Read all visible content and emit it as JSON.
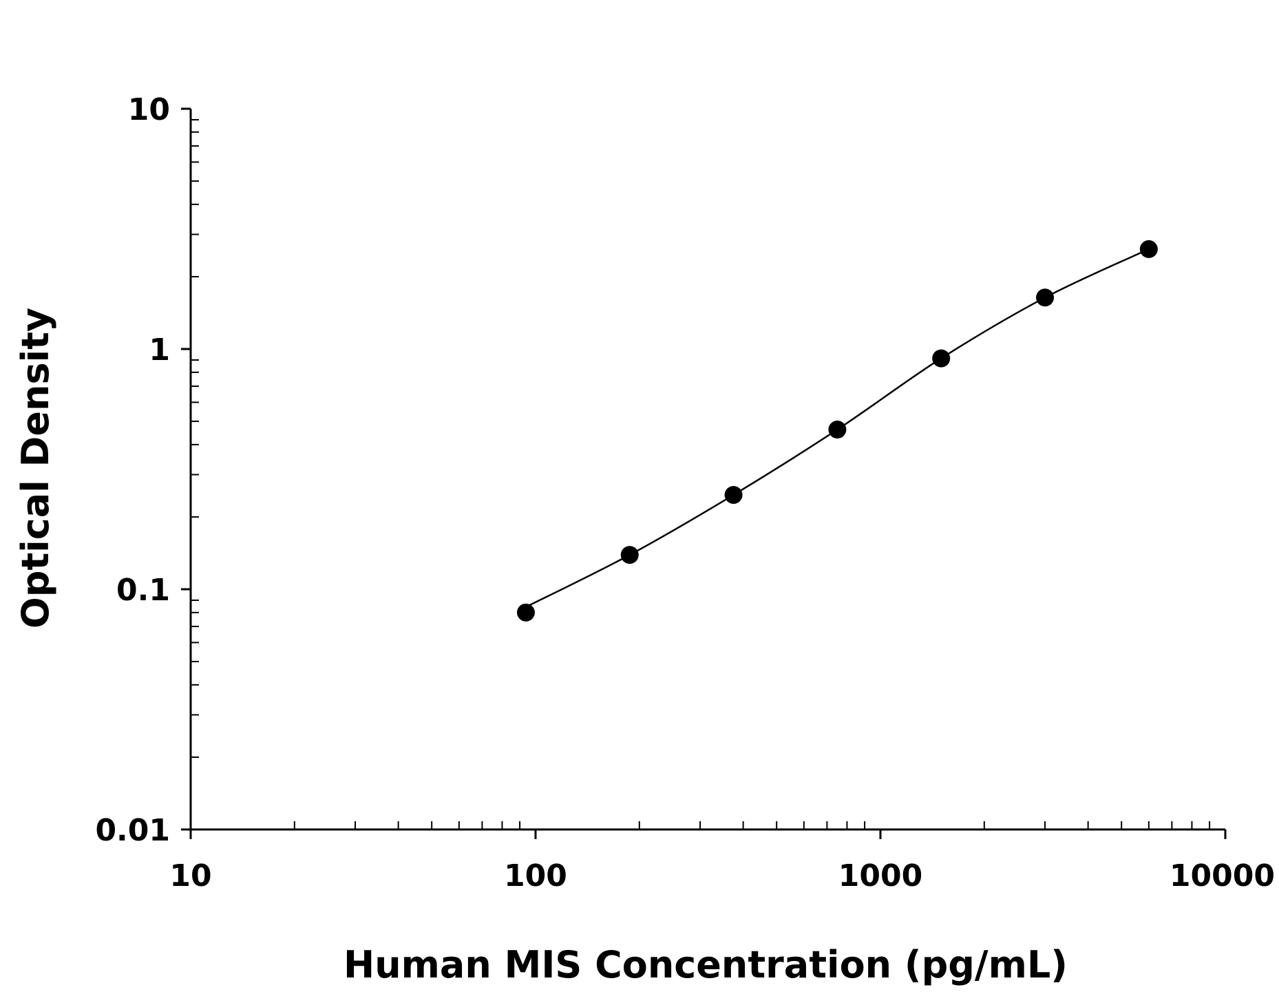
{
  "chart_data": {
    "type": "scatter",
    "title": "",
    "xlabel": "Human MIS Concentration (pg/mL)",
    "ylabel": "Optical Density",
    "x_scale": "log",
    "y_scale": "log",
    "xlim": [
      10,
      10000
    ],
    "ylim": [
      0.01,
      10
    ],
    "x_ticks": [
      "10",
      "100",
      "1000",
      "10000"
    ],
    "y_ticks": [
      "0.01",
      "0.1",
      "1",
      "10"
    ],
    "grid": false,
    "legend": "none",
    "series": [
      {
        "x": [
          93.75,
          187.5,
          375,
          750,
          1500,
          3000,
          6000
        ],
        "y": [
          0.08,
          0.139,
          0.247,
          0.462,
          0.914,
          1.637,
          2.605
        ],
        "marker": "filled-circle",
        "color": "#000000",
        "fit_line": "4-parameter logistic curve"
      }
    ]
  }
}
